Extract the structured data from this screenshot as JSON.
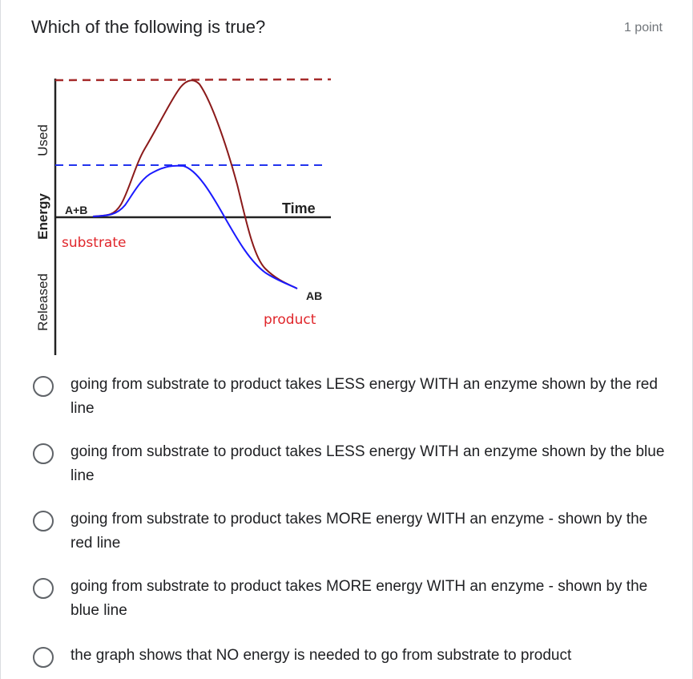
{
  "question": {
    "title": "Which of the following is true?",
    "points": "1 point"
  },
  "diagram": {
    "y_label_used": "Used",
    "y_label_energy": "Energy",
    "y_label_released": "Released",
    "x_label": "Time",
    "reactants": "A+B",
    "substrate": "substrate",
    "product_formula": "AB",
    "product": "product",
    "colors": {
      "red_line": "#8b1a1a",
      "blue_line": "#1a1aff",
      "label_red": "#e0262b"
    }
  },
  "options": [
    {
      "label": "going from substrate to product takes LESS energy WITH an enzyme shown by the red line"
    },
    {
      "label": "going from substrate to product takes LESS energy WITH an enzyme shown by the blue line"
    },
    {
      "label": "going from substrate to product takes MORE energy WITH an enzyme - shown by the red line"
    },
    {
      "label": "going from substrate to product takes MORE energy WITH an enzyme - shown by the blue line"
    },
    {
      "label": "the graph shows that NO energy is needed to go from substrate to product"
    }
  ]
}
